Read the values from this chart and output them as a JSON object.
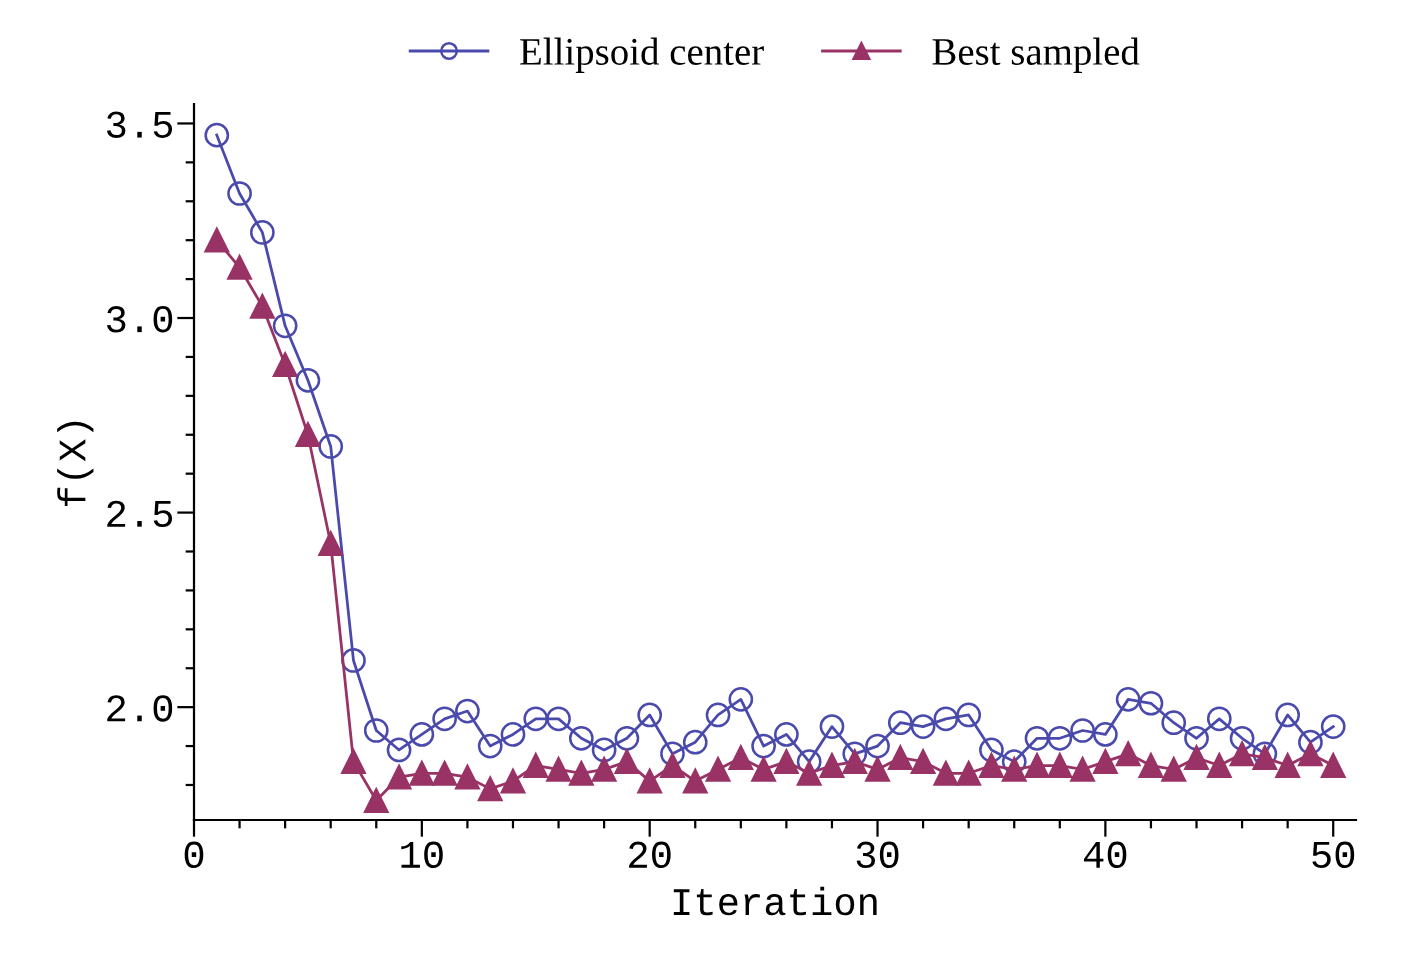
{
  "chart_data": {
    "type": "line",
    "xlabel": "Iteration",
    "ylabel": "f(X)",
    "x": [
      1,
      2,
      3,
      4,
      5,
      6,
      7,
      8,
      9,
      10,
      11,
      12,
      13,
      14,
      15,
      16,
      17,
      18,
      19,
      20,
      21,
      22,
      23,
      24,
      25,
      26,
      27,
      28,
      29,
      30,
      31,
      32,
      33,
      34,
      35,
      36,
      37,
      38,
      39,
      40,
      41,
      42,
      43,
      44,
      45,
      46,
      47,
      48,
      49,
      50
    ],
    "series": [
      {
        "name": "Ellipsoid center",
        "color": "#4a4aad",
        "marker": "circle",
        "values": [
          3.47,
          3.32,
          3.22,
          2.98,
          2.84,
          2.67,
          2.12,
          1.94,
          1.89,
          1.93,
          1.97,
          1.99,
          1.9,
          1.93,
          1.97,
          1.97,
          1.92,
          1.89,
          1.92,
          1.98,
          1.88,
          1.91,
          1.98,
          2.02,
          1.9,
          1.93,
          1.86,
          1.95,
          1.88,
          1.9,
          1.96,
          1.95,
          1.97,
          1.98,
          1.89,
          1.86,
          1.92,
          1.92,
          1.94,
          1.93,
          2.02,
          2.01,
          1.96,
          1.92,
          1.97,
          1.92,
          1.88,
          1.98,
          1.91,
          1.95
        ]
      },
      {
        "name": "Best sampled",
        "color": "#993366",
        "marker": "triangle",
        "values": [
          3.2,
          3.13,
          3.03,
          2.88,
          2.7,
          2.42,
          1.86,
          1.76,
          1.82,
          1.83,
          1.83,
          1.82,
          1.79,
          1.81,
          1.85,
          1.84,
          1.83,
          1.84,
          1.86,
          1.81,
          1.85,
          1.81,
          1.84,
          1.87,
          1.84,
          1.86,
          1.83,
          1.85,
          1.86,
          1.84,
          1.87,
          1.86,
          1.83,
          1.83,
          1.85,
          1.84,
          1.85,
          1.85,
          1.84,
          1.86,
          1.88,
          1.85,
          1.84,
          1.87,
          1.85,
          1.88,
          1.87,
          1.85,
          1.88,
          1.85
        ]
      }
    ],
    "xlim": [
      0,
      51
    ],
    "ylim": [
      1.71,
      3.55
    ],
    "xticks": [
      0,
      {
        "value": 2,
        "label": null
      },
      {
        "value": 4,
        "label": null
      },
      {
        "value": 6,
        "label": null
      },
      {
        "value": 8,
        "label": null
      },
      10,
      {
        "value": 12,
        "label": null
      },
      {
        "value": 14,
        "label": null
      },
      {
        "value": 16,
        "label": null
      },
      {
        "value": 18,
        "label": null
      },
      20,
      {
        "value": 22,
        "label": null
      },
      {
        "value": 24,
        "label": null
      },
      {
        "value": 26,
        "label": null
      },
      {
        "value": 28,
        "label": null
      },
      30,
      {
        "value": 32,
        "label": null
      },
      {
        "value": 34,
        "label": null
      },
      {
        "value": 36,
        "label": null
      },
      {
        "value": 38,
        "label": null
      },
      40,
      {
        "value": 42,
        "label": null
      },
      {
        "value": 44,
        "label": null
      },
      {
        "value": 46,
        "label": null
      },
      {
        "value": 48,
        "label": null
      },
      50
    ],
    "yticks": [
      {
        "value": 1.8,
        "label": null
      },
      {
        "value": 1.9,
        "label": null
      },
      {
        "value": 2.0,
        "label": "2.0"
      },
      {
        "value": 2.1,
        "label": null
      },
      {
        "value": 2.2,
        "label": null
      },
      {
        "value": 2.3,
        "label": null
      },
      {
        "value": 2.4,
        "label": null
      },
      {
        "value": 2.5,
        "label": "2.5"
      },
      {
        "value": 2.6,
        "label": null
      },
      {
        "value": 2.7,
        "label": null
      },
      {
        "value": 2.8,
        "label": null
      },
      {
        "value": 2.9,
        "label": null
      },
      {
        "value": 3.0,
        "label": "3.0"
      },
      {
        "value": 3.1,
        "label": null
      },
      {
        "value": 3.2,
        "label": null
      },
      {
        "value": 3.3,
        "label": null
      },
      {
        "value": 3.4,
        "label": null
      },
      {
        "value": 3.5,
        "label": "3.5"
      }
    ],
    "legend": "top",
    "grid": false
  }
}
